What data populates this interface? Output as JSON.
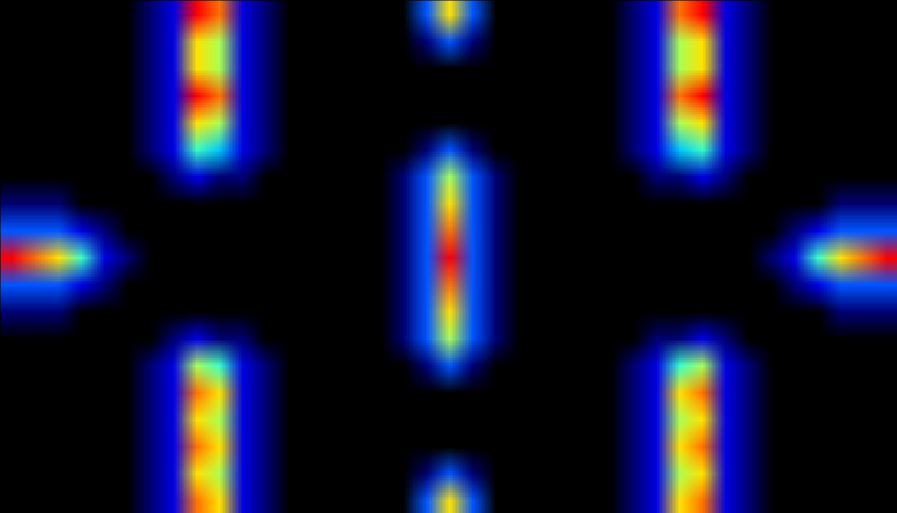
{
  "chart_data": {
    "type": "heatmap",
    "tick_labels": false,
    "zlim": [
      0,
      9
    ],
    "cells": [
      [
        0,
        0,
        0,
        0,
        0,
        0,
        1,
        2,
        9,
        8,
        2,
        1,
        0,
        0,
        0,
        0,
        0,
        0,
        3,
        7,
        3,
        0,
        0,
        0,
        0,
        0,
        0,
        1,
        2,
        8,
        9,
        2,
        1,
        0,
        0,
        0,
        0,
        0,
        0
      ],
      [
        0,
        0,
        0,
        0,
        0,
        0,
        1,
        2,
        7,
        6,
        2,
        1,
        0,
        0,
        0,
        0,
        0,
        0,
        1,
        3,
        1,
        0,
        0,
        0,
        0,
        0,
        0,
        1,
        2,
        6,
        7,
        2,
        1,
        0,
        0,
        0,
        0,
        0,
        0
      ],
      [
        0,
        0,
        0,
        0,
        0,
        0,
        1,
        2,
        7,
        6,
        2,
        1,
        0,
        0,
        0,
        0,
        0,
        0,
        0,
        0,
        0,
        0,
        0,
        0,
        0,
        0,
        0,
        1,
        2,
        6,
        7,
        2,
        1,
        0,
        0,
        0,
        0,
        0,
        0
      ],
      [
        0,
        0,
        0,
        0,
        0,
        0,
        1,
        2,
        9,
        8,
        2,
        1,
        0,
        0,
        0,
        0,
        0,
        0,
        0,
        0,
        0,
        0,
        0,
        0,
        0,
        0,
        0,
        1,
        2,
        8,
        9,
        2,
        1,
        0,
        0,
        0,
        0,
        0,
        0
      ],
      [
        0,
        0,
        0,
        0,
        0,
        0,
        1,
        2,
        7,
        6,
        2,
        1,
        0,
        0,
        0,
        0,
        0,
        0,
        0,
        0,
        0,
        0,
        0,
        0,
        0,
        0,
        0,
        1,
        2,
        6,
        7,
        2,
        1,
        0,
        0,
        0,
        0,
        0,
        0
      ],
      [
        0,
        0,
        0,
        0,
        0,
        0,
        1,
        2,
        5,
        4,
        2,
        1,
        0,
        0,
        0,
        0,
        0,
        0,
        1,
        3,
        1,
        0,
        0,
        0,
        0,
        0,
        0,
        1,
        2,
        4,
        5,
        2,
        1,
        0,
        0,
        0,
        0,
        0,
        0
      ],
      [
        0,
        0,
        0,
        0,
        0,
        0,
        0,
        1,
        2,
        1,
        1,
        0,
        0,
        0,
        0,
        0,
        0,
        1,
        3,
        6,
        3,
        1,
        0,
        0,
        0,
        0,
        0,
        0,
        1,
        1,
        2,
        1,
        0,
        0,
        0,
        0,
        0,
        0,
        0
      ],
      [
        1,
        1,
        1,
        0,
        0,
        0,
        0,
        0,
        0,
        0,
        0,
        0,
        0,
        0,
        0,
        0,
        0,
        1,
        3,
        7,
        3,
        1,
        0,
        0,
        0,
        0,
        0,
        0,
        0,
        0,
        0,
        0,
        0,
        0,
        0,
        0,
        1,
        1,
        1
      ],
      [
        3,
        3,
        3,
        2,
        1,
        0,
        0,
        0,
        0,
        0,
        0,
        0,
        0,
        0,
        0,
        0,
        0,
        1,
        3,
        8,
        3,
        1,
        0,
        0,
        0,
        0,
        0,
        0,
        0,
        0,
        0,
        0,
        0,
        0,
        1,
        2,
        3,
        3,
        3
      ],
      [
        9,
        8,
        7,
        5,
        2,
        1,
        0,
        0,
        0,
        0,
        0,
        0,
        0,
        0,
        0,
        0,
        0,
        1,
        3,
        9,
        3,
        1,
        0,
        0,
        0,
        0,
        0,
        0,
        0,
        0,
        0,
        0,
        0,
        1,
        2,
        5,
        7,
        8,
        9
      ],
      [
        3,
        3,
        3,
        2,
        1,
        0,
        0,
        0,
        0,
        0,
        0,
        0,
        0,
        0,
        0,
        0,
        0,
        1,
        3,
        8,
        3,
        1,
        0,
        0,
        0,
        0,
        0,
        0,
        0,
        0,
        0,
        0,
        0,
        0,
        1,
        2,
        3,
        3,
        3
      ],
      [
        1,
        1,
        1,
        0,
        0,
        0,
        0,
        0,
        0,
        0,
        0,
        0,
        0,
        0,
        0,
        0,
        0,
        1,
        3,
        7,
        3,
        1,
        0,
        0,
        0,
        0,
        0,
        0,
        0,
        0,
        0,
        0,
        0,
        0,
        0,
        0,
        1,
        1,
        1
      ],
      [
        0,
        0,
        0,
        0,
        0,
        0,
        0,
        1,
        2,
        1,
        1,
        0,
        0,
        0,
        0,
        0,
        0,
        1,
        3,
        6,
        3,
        1,
        0,
        0,
        0,
        0,
        0,
        0,
        1,
        1,
        2,
        1,
        0,
        0,
        0,
        0,
        0,
        0,
        0
      ],
      [
        0,
        0,
        0,
        0,
        0,
        0,
        1,
        2,
        6,
        5,
        2,
        1,
        0,
        0,
        0,
        0,
        0,
        0,
        1,
        3,
        1,
        0,
        0,
        0,
        0,
        0,
        0,
        1,
        2,
        5,
        6,
        2,
        1,
        0,
        0,
        0,
        0,
        0,
        0
      ],
      [
        0,
        0,
        0,
        0,
        0,
        0,
        1,
        2,
        8,
        7,
        2,
        1,
        0,
        0,
        0,
        0,
        0,
        0,
        0,
        0,
        0,
        0,
        0,
        0,
        0,
        0,
        0,
        1,
        2,
        7,
        8,
        2,
        1,
        0,
        0,
        0,
        0,
        0,
        0
      ],
      [
        0,
        0,
        0,
        0,
        0,
        0,
        1,
        2,
        7,
        6,
        2,
        1,
        0,
        0,
        0,
        0,
        0,
        0,
        0,
        0,
        0,
        0,
        0,
        0,
        0,
        0,
        0,
        1,
        2,
        6,
        7,
        2,
        1,
        0,
        0,
        0,
        0,
        0,
        0
      ],
      [
        0,
        0,
        0,
        0,
        0,
        0,
        1,
        2,
        8,
        7,
        2,
        1,
        0,
        0,
        0,
        0,
        0,
        0,
        0,
        0,
        0,
        0,
        0,
        0,
        0,
        0,
        0,
        1,
        2,
        7,
        8,
        2,
        1,
        0,
        0,
        0,
        0,
        0,
        0
      ],
      [
        0,
        0,
        0,
        0,
        0,
        0,
        1,
        2,
        7,
        6,
        2,
        1,
        0,
        0,
        0,
        0,
        0,
        0,
        1,
        3,
        1,
        0,
        0,
        0,
        0,
        0,
        0,
        1,
        2,
        6,
        7,
        2,
        1,
        0,
        0,
        0,
        0,
        0,
        0
      ],
      [
        0,
        0,
        0,
        0,
        0,
        0,
        1,
        2,
        8,
        7,
        2,
        1,
        0,
        0,
        0,
        0,
        0,
        0,
        3,
        7,
        3,
        0,
        0,
        0,
        0,
        0,
        0,
        1,
        2,
        7,
        8,
        2,
        1,
        0,
        0,
        0,
        0,
        0,
        0
      ]
    ]
  }
}
